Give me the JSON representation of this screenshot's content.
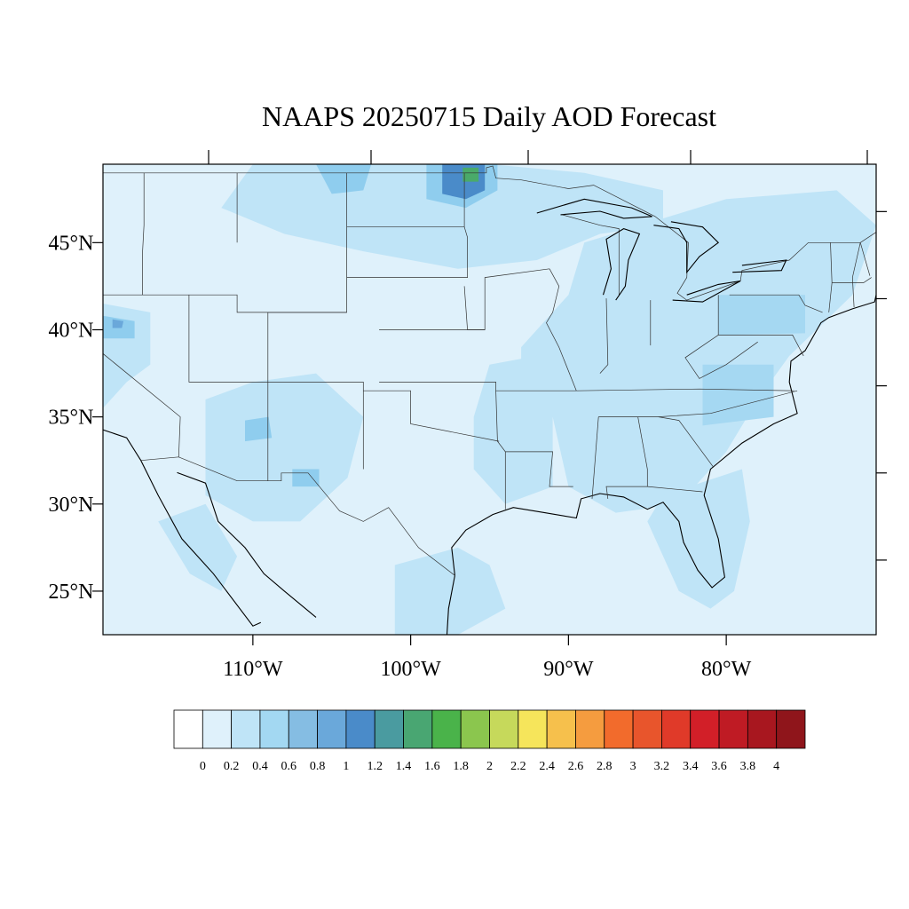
{
  "title": "NAAPS 20250715 Daily AOD Forecast",
  "map": {
    "lon_range": [
      -119.5,
      -70.5
    ],
    "lat_range": [
      22.5,
      49.5
    ],
    "lat_tick_labels": [
      "45°N",
      "40°N",
      "35°N",
      "30°N",
      "25°N"
    ],
    "lat_tick_values": [
      45,
      40,
      35,
      30,
      25
    ],
    "lon_tick_labels": [
      "110°W",
      "100°W",
      "90°W",
      "80°W"
    ],
    "lon_tick_values": [
      -110,
      -100,
      -90,
      -80
    ],
    "background_color": "#dff1fb",
    "field_regions": [
      {
        "name": "northern plains / canada smoke",
        "color": "#bfe4f7",
        "lonlat": [
          [
            -110,
            49.5
          ],
          [
            -95,
            49.5
          ],
          [
            -89,
            49
          ],
          [
            -84,
            48
          ],
          [
            -84,
            46
          ],
          [
            -88,
            45.5
          ],
          [
            -92,
            44
          ],
          [
            -97,
            43.5
          ],
          [
            -103,
            44.5
          ],
          [
            -108,
            45.5
          ],
          [
            -112,
            47
          ]
        ]
      },
      {
        "name": "great lakes / northeast",
        "color": "#bfe4f7",
        "lonlat": [
          [
            -89,
            45
          ],
          [
            -80,
            47.5
          ],
          [
            -73,
            48
          ],
          [
            -70.5,
            46
          ],
          [
            -72,
            42
          ],
          [
            -76,
            38.5
          ],
          [
            -78,
            36
          ],
          [
            -80,
            33
          ],
          [
            -83,
            30
          ],
          [
            -87,
            29.5
          ],
          [
            -90,
            31
          ],
          [
            -91,
            35
          ],
          [
            -93,
            37
          ],
          [
            -93,
            39
          ],
          [
            -90,
            42
          ]
        ]
      },
      {
        "name": "southeast florida",
        "color": "#bfe4f7",
        "lonlat": [
          [
            -84,
            30.5
          ],
          [
            -79,
            32
          ],
          [
            -78.5,
            29
          ],
          [
            -79.5,
            25
          ],
          [
            -81,
            24
          ],
          [
            -83,
            25
          ],
          [
            -85,
            29
          ]
        ]
      },
      {
        "name": "missouri ozarks",
        "color": "#bfe4f7",
        "lonlat": [
          [
            -95,
            38
          ],
          [
            -92,
            38.5
          ],
          [
            -91,
            36
          ],
          [
            -91,
            31
          ],
          [
            -94,
            30
          ],
          [
            -96,
            32
          ],
          [
            -96,
            35
          ]
        ]
      },
      {
        "name": "south texas",
        "color": "#bfe4f7",
        "lonlat": [
          [
            -101,
            26.5
          ],
          [
            -97,
            27.5
          ],
          [
            -95,
            26.5
          ],
          [
            -94,
            24
          ],
          [
            -97,
            22.5
          ],
          [
            -101,
            22.5
          ]
        ]
      },
      {
        "name": "southwest arizona",
        "color": "#bfe4f7",
        "lonlat": [
          [
            -113,
            36
          ],
          [
            -110,
            37
          ],
          [
            -106,
            37.5
          ],
          [
            -103,
            35
          ],
          [
            -104,
            31.5
          ],
          [
            -107,
            29
          ],
          [
            -110,
            29
          ],
          [
            -113,
            30.5
          ]
        ]
      },
      {
        "name": "baja",
        "color": "#bfe4f7",
        "lonlat": [
          [
            -116,
            29
          ],
          [
            -113,
            30
          ],
          [
            -111,
            27
          ],
          [
            -112,
            25
          ],
          [
            -114,
            26
          ]
        ]
      },
      {
        "name": "california coast",
        "color": "#bfe4f7",
        "lonlat": [
          [
            -119.5,
            41.5
          ],
          [
            -116.5,
            41
          ],
          [
            -116.5,
            38
          ],
          [
            -118,
            37
          ],
          [
            -119.5,
            35.5
          ]
        ]
      },
      {
        "name": "california north hotspot",
        "color": "#8fcdee",
        "lonlat": [
          [
            -119.5,
            40.8
          ],
          [
            -117.5,
            40.5
          ],
          [
            -117.5,
            39.5
          ],
          [
            -119.5,
            39.5
          ]
        ]
      },
      {
        "name": "california core",
        "color": "#6aa8da",
        "lonlat": [
          [
            -118.9,
            40.6
          ],
          [
            -118.2,
            40.5
          ],
          [
            -118.3,
            40.1
          ],
          [
            -118.9,
            40.1
          ]
        ]
      },
      {
        "name": "north dakota hotspot",
        "color": "#8fcdee",
        "lonlat": [
          [
            -99,
            49.5
          ],
          [
            -94.5,
            49.5
          ],
          [
            -94.5,
            48
          ],
          [
            -96.5,
            47
          ],
          [
            -99,
            47.5
          ]
        ]
      },
      {
        "name": "north dakota core",
        "color": "#4a8bc9",
        "lonlat": [
          [
            -98,
            49.5
          ],
          [
            -95.3,
            49.5
          ],
          [
            -95.3,
            48
          ],
          [
            -96.5,
            47.5
          ],
          [
            -98,
            47.8
          ]
        ]
      },
      {
        "name": "north dakota peak",
        "color": "#4aaa6a",
        "lonlat": [
          [
            -96.7,
            49.3
          ],
          [
            -95.7,
            49.3
          ],
          [
            -95.7,
            48.5
          ],
          [
            -96.7,
            48.5
          ]
        ]
      },
      {
        "name": "montana north hotspot",
        "color": "#8fcdee",
        "lonlat": [
          [
            -106,
            49.5
          ],
          [
            -102.5,
            49.5
          ],
          [
            -103,
            48
          ],
          [
            -105,
            47.8
          ]
        ]
      },
      {
        "name": "pennsylvania",
        "color": "#a5d8f2",
        "lonlat": [
          [
            -80.5,
            42
          ],
          [
            -75,
            42
          ],
          [
            -75,
            39.8
          ],
          [
            -80.5,
            39.7
          ]
        ]
      },
      {
        "name": "virginia carolina",
        "color": "#a5d8f2",
        "lonlat": [
          [
            -81.5,
            38
          ],
          [
            -77,
            38
          ],
          [
            -77,
            35
          ],
          [
            -81.5,
            34.5
          ]
        ]
      },
      {
        "name": "arizona core",
        "color": "#8fcdee",
        "lonlat": [
          [
            -110.5,
            34.8
          ],
          [
            -109,
            35
          ],
          [
            -108.8,
            33.8
          ],
          [
            -110.5,
            33.6
          ]
        ]
      },
      {
        "name": "new mexico core",
        "color": "#8fcdee",
        "lonlat": [
          [
            -107.5,
            32
          ],
          [
            -105.8,
            32
          ],
          [
            -105.8,
            31
          ],
          [
            -107.5,
            31
          ]
        ]
      }
    ]
  },
  "colorbar": {
    "labels": [
      "0",
      "0.2",
      "0.4",
      "0.6",
      "0.8",
      "1",
      "1.2",
      "1.4",
      "1.6",
      "1.8",
      "2",
      "2.2",
      "2.4",
      "2.6",
      "2.8",
      "3",
      "3.2",
      "3.4",
      "3.6",
      "3.8",
      "4"
    ],
    "colors": [
      "#ffffff",
      "#dff1fb",
      "#bfe4f7",
      "#a3d8f2",
      "#85bde3",
      "#6aa8da",
      "#4a8bc9",
      "#4a9ba0",
      "#49a672",
      "#4ab34a",
      "#8bc64e",
      "#c6d95b",
      "#f6e55b",
      "#f6c04c",
      "#f59c3f",
      "#f26b2c",
      "#e8552c",
      "#e03a29",
      "#d21f28",
      "#bf1b24",
      "#a8171f",
      "#8f151b"
    ]
  }
}
